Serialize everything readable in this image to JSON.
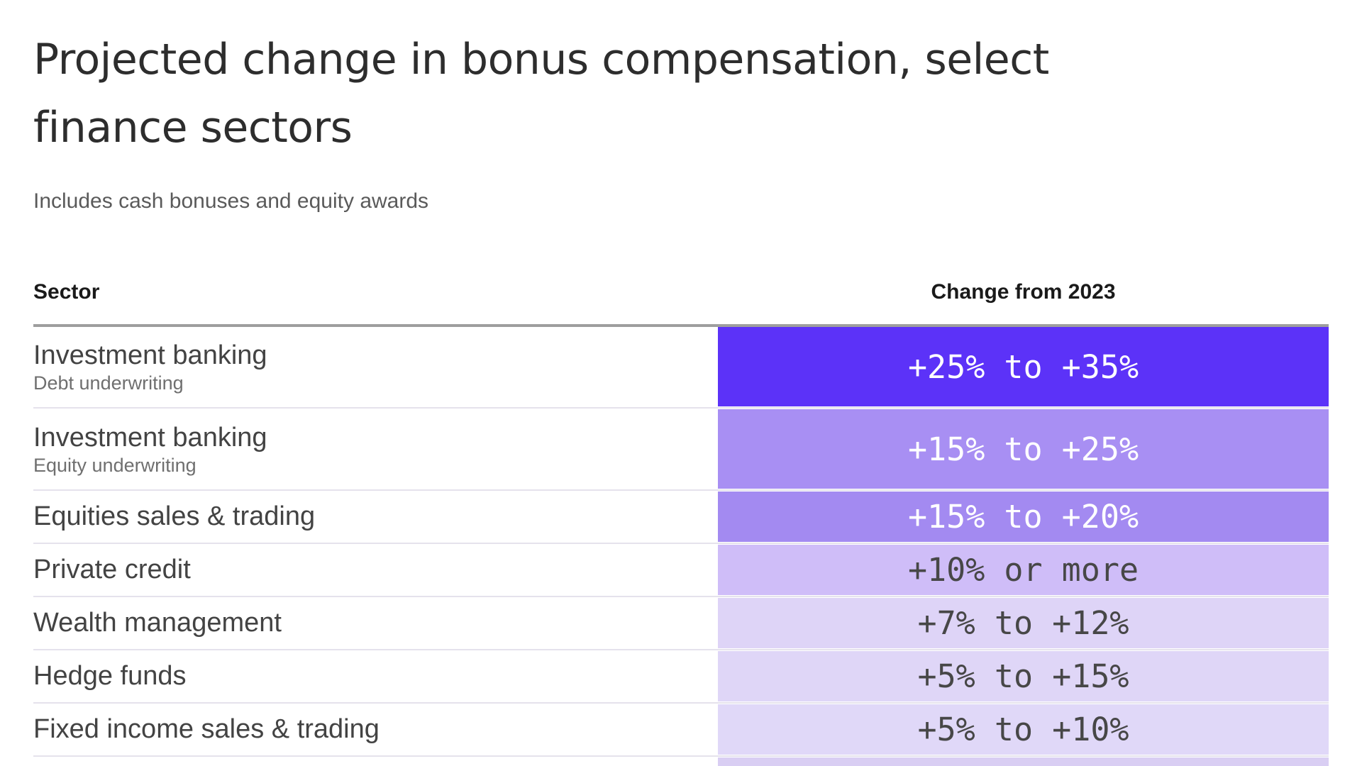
{
  "page": {
    "title_line1": "Projected change in bonus compensation, select",
    "title_line2": "finance sectors"
  },
  "chart_data": {
    "type": "table",
    "title": "Projected change in bonus compensation, select finance sectors",
    "subtitle": "Includes cash bonuses and equity awards",
    "columns": [
      "Sector",
      "Change from 2023"
    ],
    "legend_position": "none",
    "header_rule_color": "#9e9e9e",
    "rows": [
      {
        "sector": "Investment banking",
        "detail": "Debt underwriting",
        "change": "+25% to +35%",
        "change_min_pct": 25,
        "change_max_pct": 35,
        "bg": "#5c32f8",
        "fg": "#ffffff"
      },
      {
        "sector": "Investment banking",
        "detail": "Equity underwriting",
        "change": "+15% to +25%",
        "change_min_pct": 15,
        "change_max_pct": 25,
        "bg": "#a88ff3",
        "fg": "#ffffff"
      },
      {
        "sector": "Equities sales & trading",
        "detail": "",
        "change": "+15% to +20%",
        "change_min_pct": 15,
        "change_max_pct": 20,
        "bg": "#a38af1",
        "fg": "#ffffff"
      },
      {
        "sector": "Private credit",
        "detail": "",
        "change": "+10% or more",
        "change_min_pct": 10,
        "change_max_pct": null,
        "bg": "#cfbdf8",
        "fg": "#474747"
      },
      {
        "sector": "Wealth management",
        "detail": "",
        "change": "+7% to +12%",
        "change_min_pct": 7,
        "change_max_pct": 12,
        "bg": "#ded4f7",
        "fg": "#474747"
      },
      {
        "sector": "Hedge funds",
        "detail": "",
        "change": "+5% to +15%",
        "change_min_pct": 5,
        "change_max_pct": 15,
        "bg": "#dfd6f7",
        "fg": "#474747"
      },
      {
        "sector": "Fixed income sales & trading",
        "detail": "",
        "change": "+5% to +10%",
        "change_min_pct": 5,
        "change_max_pct": 10,
        "bg": "#e0d8f8",
        "fg": "#474747"
      },
      {
        "sector": "",
        "detail": "",
        "change": "",
        "bg": "#d9cef3",
        "fg": "#474747",
        "note": "row cut off at bottom edge of viewport"
      }
    ]
  }
}
